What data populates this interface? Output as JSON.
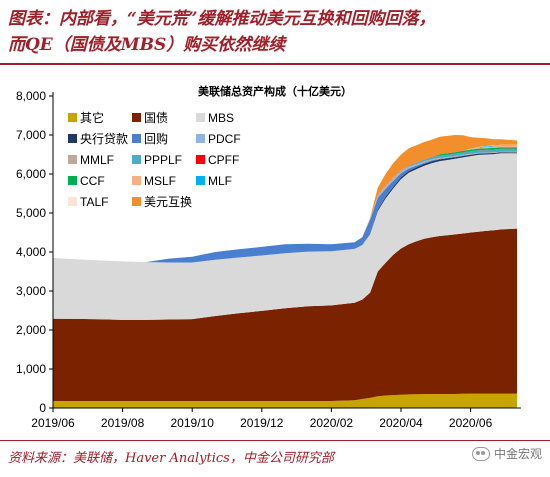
{
  "header": {
    "title_line1": "图表：内部看，“美元荒”缓解推动美元互换和回购回落，",
    "title_line2": "而QE（国债及MBS）购买依然继续"
  },
  "footer": {
    "source": "资料来源：美联储，Haver Analytics，中金公司研究部",
    "watermark": "中金宏观",
    "watermark_icon": "wechat-icon"
  },
  "chart_data": {
    "type": "area",
    "stacked": true,
    "title": "美联储总资产构成（十亿美元）",
    "xlabel": "",
    "ylabel": "",
    "ylim": [
      0,
      8000
    ],
    "yticks": [
      0,
      1000,
      2000,
      3000,
      4000,
      5000,
      6000,
      7000,
      8000
    ],
    "ytick_labels": [
      "0",
      "1,000",
      "2,000",
      "3,000",
      "4,000",
      "5,000",
      "6,000",
      "7,000",
      "8,000"
    ],
    "xtick_labels": [
      "2019/06",
      "2019/08",
      "2019/10",
      "2019/12",
      "2020/02",
      "2020/04",
      "2020/06"
    ],
    "xtick_positions": [
      0,
      9,
      18,
      27,
      36,
      45,
      54
    ],
    "grid": false,
    "legend_position": "top-left",
    "x": [
      "2019/06/05",
      "2019/06/26",
      "2019/07/17",
      "2019/08/07",
      "2019/08/28",
      "2019/09/18",
      "2019/10/09",
      "2019/10/30",
      "2019/11/20",
      "2019/12/11",
      "2020/01/01",
      "2020/01/22",
      "2020/02/12",
      "2020/03/04",
      "2020/03/11",
      "2020/03/18",
      "2020/03/25",
      "2020/04/01",
      "2020/04/08",
      "2020/04/15",
      "2020/04/22",
      "2020/04/29",
      "2020/05/06",
      "2020/05/13",
      "2020/05/20",
      "2020/05/27",
      "2020/06/03",
      "2020/06/10",
      "2020/06/17",
      "2020/06/24",
      "2020/07/01",
      "2020/07/08",
      "2020/07/15",
      "2020/07/22",
      "2020/07/29"
    ],
    "x_index": [
      0,
      3,
      6,
      9,
      12,
      15,
      18,
      21,
      24,
      27,
      30,
      33,
      36,
      39,
      40,
      41,
      42,
      43,
      44,
      45,
      46,
      47,
      48,
      49,
      50,
      51,
      52,
      53,
      54,
      55,
      56,
      57,
      58,
      59,
      60
    ],
    "series": [
      {
        "name": "其它",
        "color": "#c8a400",
        "values": [
          180,
          180,
          180,
          180,
          180,
          180,
          180,
          180,
          180,
          180,
          180,
          180,
          180,
          200,
          230,
          260,
          300,
          320,
          330,
          340,
          350,
          355,
          360,
          360,
          360,
          360,
          360,
          365,
          370,
          370,
          370,
          370,
          370,
          370,
          370
        ]
      },
      {
        "name": "国债",
        "color": "#7b2300",
        "values": [
          2110,
          2105,
          2095,
          2080,
          2080,
          2090,
          2100,
          2180,
          2250,
          2310,
          2380,
          2430,
          2450,
          2500,
          2550,
          2700,
          3200,
          3400,
          3600,
          3750,
          3850,
          3920,
          3980,
          4020,
          4050,
          4070,
          4090,
          4110,
          4130,
          4150,
          4170,
          4190,
          4210,
          4220,
          4230
        ]
      },
      {
        "name": "MBS",
        "color": "#d9d9d9",
        "values": [
          1560,
          1530,
          1510,
          1500,
          1480,
          1460,
          1450,
          1440,
          1430,
          1420,
          1410,
          1400,
          1390,
          1380,
          1400,
          1500,
          1550,
          1650,
          1700,
          1780,
          1830,
          1850,
          1870,
          1900,
          1920,
          1930,
          1940,
          1950,
          1960,
          1970,
          1960,
          1950,
          1950,
          1940,
          1930
        ]
      },
      {
        "name": "央行贷款",
        "color": "#1f3864",
        "values": [
          0,
          0,
          0,
          0,
          0,
          0,
          0,
          0,
          0,
          0,
          0,
          0,
          0,
          0,
          0,
          20,
          40,
          45,
          48,
          50,
          50,
          50,
          50,
          48,
          45,
          42,
          40,
          38,
          35,
          32,
          30,
          28,
          26,
          24,
          22
        ]
      },
      {
        "name": "回购",
        "color": "#4a7fd0",
        "values": [
          0,
          0,
          0,
          0,
          0,
          100,
          150,
          200,
          210,
          220,
          230,
          200,
          180,
          170,
          200,
          350,
          300,
          200,
          150,
          100,
          60,
          40,
          30,
          20,
          15,
          10,
          8,
          5,
          3,
          2,
          1,
          1,
          1,
          1,
          1
        ]
      },
      {
        "name": "PDCF",
        "color": "#8eb4e3",
        "values": [
          0,
          0,
          0,
          0,
          0,
          0,
          0,
          0,
          0,
          0,
          0,
          0,
          0,
          0,
          0,
          20,
          30,
          33,
          30,
          25,
          18,
          12,
          8,
          6,
          4,
          3,
          3,
          3,
          3,
          2,
          2,
          2,
          2,
          2,
          2
        ]
      },
      {
        "name": "MMLF",
        "color": "#c0a898",
        "values": [
          0,
          0,
          0,
          0,
          0,
          0,
          0,
          0,
          0,
          0,
          0,
          0,
          0,
          0,
          0,
          10,
          30,
          50,
          45,
          40,
          35,
          30,
          28,
          25,
          22,
          20,
          19,
          18,
          17,
          16,
          15,
          15,
          14,
          14,
          14
        ]
      },
      {
        "name": "PPPLF",
        "color": "#4bacc6",
        "values": [
          0,
          0,
          0,
          0,
          0,
          0,
          0,
          0,
          0,
          0,
          0,
          0,
          0,
          0,
          0,
          0,
          0,
          0,
          0,
          10,
          20,
          35,
          45,
          52,
          55,
          57,
          58,
          60,
          62,
          64,
          66,
          68,
          69,
          70,
          70
        ]
      },
      {
        "name": "CPFF",
        "color": "#ff0000",
        "values": [
          0,
          0,
          0,
          0,
          0,
          0,
          0,
          0,
          0,
          0,
          0,
          0,
          0,
          0,
          0,
          0,
          0,
          0,
          0,
          3,
          4,
          4,
          4,
          4,
          4,
          4,
          4,
          4,
          4,
          4,
          4,
          4,
          4,
          4,
          4
        ]
      },
      {
        "name": "CCF",
        "color": "#00b050",
        "values": [
          0,
          0,
          0,
          0,
          0,
          0,
          0,
          0,
          0,
          0,
          0,
          0,
          0,
          0,
          0,
          0,
          0,
          0,
          0,
          0,
          0,
          0,
          0,
          0,
          30,
          35,
          38,
          40,
          42,
          42,
          42,
          42,
          42,
          42,
          42
        ]
      },
      {
        "name": "MSLF",
        "color": "#f4b183",
        "values": [
          0,
          0,
          0,
          0,
          0,
          0,
          0,
          0,
          0,
          0,
          0,
          0,
          0,
          0,
          0,
          0,
          0,
          0,
          0,
          0,
          0,
          0,
          0,
          0,
          0,
          0,
          0,
          0,
          10,
          20,
          35,
          38,
          38,
          38,
          38
        ]
      },
      {
        "name": "MLF",
        "color": "#00b0f0",
        "values": [
          0,
          0,
          0,
          0,
          0,
          0,
          0,
          0,
          0,
          0,
          0,
          0,
          0,
          0,
          0,
          0,
          0,
          0,
          0,
          0,
          0,
          0,
          0,
          0,
          0,
          0,
          0,
          0,
          5,
          10,
          14,
          16,
          16,
          16,
          16
        ]
      },
      {
        "name": "TALF",
        "color": "#fbe5d6",
        "values": [
          0,
          0,
          0,
          0,
          0,
          0,
          0,
          0,
          0,
          0,
          0,
          0,
          0,
          0,
          0,
          0,
          0,
          0,
          0,
          0,
          0,
          0,
          0,
          0,
          0,
          0,
          0,
          0,
          5,
          7,
          8,
          9,
          10,
          10,
          10
        ]
      },
      {
        "name": "美元互换",
        "color": "#f28e2b",
        "values": [
          0,
          0,
          0,
          0,
          0,
          0,
          0,
          0,
          0,
          0,
          0,
          0,
          0,
          0,
          5,
          20,
          200,
          300,
          380,
          400,
          440,
          440,
          445,
          448,
          448,
          447,
          440,
          400,
          300,
          240,
          200,
          160,
          140,
          120,
          110
        ]
      }
    ]
  }
}
